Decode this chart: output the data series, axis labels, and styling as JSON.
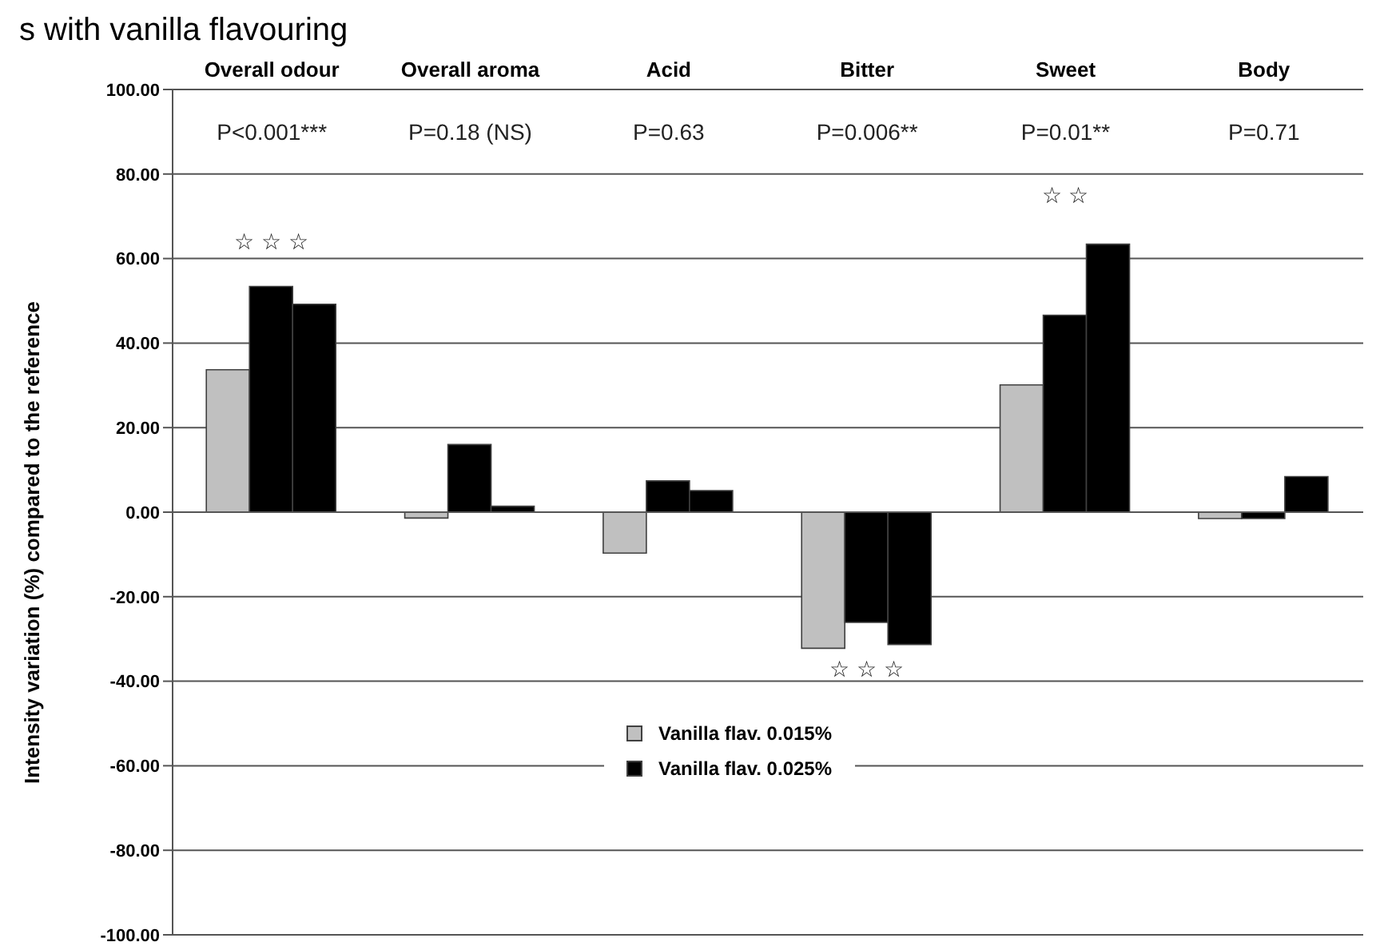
{
  "chart_data": {
    "type": "bar",
    "title": "s with vanilla flavouring",
    "ylabel": "Intensity variation (%) compared to the reference",
    "categories": [
      "Overall odour",
      "Overall aroma",
      "Acid",
      "Bitter",
      "Sweet",
      "Body"
    ],
    "series": [
      {
        "name": "Vanilla flav. 0.015%",
        "color": "#c0c0c0",
        "values": [
          33.7,
          -1.4,
          -9.7,
          -32.2,
          30.1,
          -1.5
        ]
      },
      {
        "name": "Vanilla flav. 0.025%",
        "color": "#000000",
        "values": [
          53.4,
          16.0,
          7.4,
          -26.1,
          46.6,
          -1.5
        ]
      },
      {
        "color": "#000000",
        "values": [
          49.2,
          1.4,
          5.1,
          -31.3,
          63.4,
          8.4
        ]
      }
    ],
    "ylim": [
      -100,
      100
    ],
    "yticks": [
      {
        "value": -100,
        "label": "-100.00"
      },
      {
        "value": -80,
        "label": "-80.00"
      },
      {
        "value": -60,
        "label": "-60.00"
      },
      {
        "value": -40,
        "label": "-40.00"
      },
      {
        "value": -20,
        "label": "-20.00"
      },
      {
        "value": 0,
        "label": "0.00"
      },
      {
        "value": 20,
        "label": "20.00"
      },
      {
        "value": 40,
        "label": "40.00"
      },
      {
        "value": 60,
        "label": "60.00"
      },
      {
        "value": 80,
        "label": "80.00"
      },
      {
        "value": 100,
        "label": "100.00"
      }
    ],
    "grid": "y",
    "legend": "bottom",
    "annotations": [
      "P<0.001***",
      "P=0.18 (NS)",
      "P=0.63",
      "P=0.006**",
      "P=0.01**",
      "P=0.71",
      "☆ ☆ ☆",
      "☆ ☆ ☆",
      "☆ ☆"
    ]
  }
}
